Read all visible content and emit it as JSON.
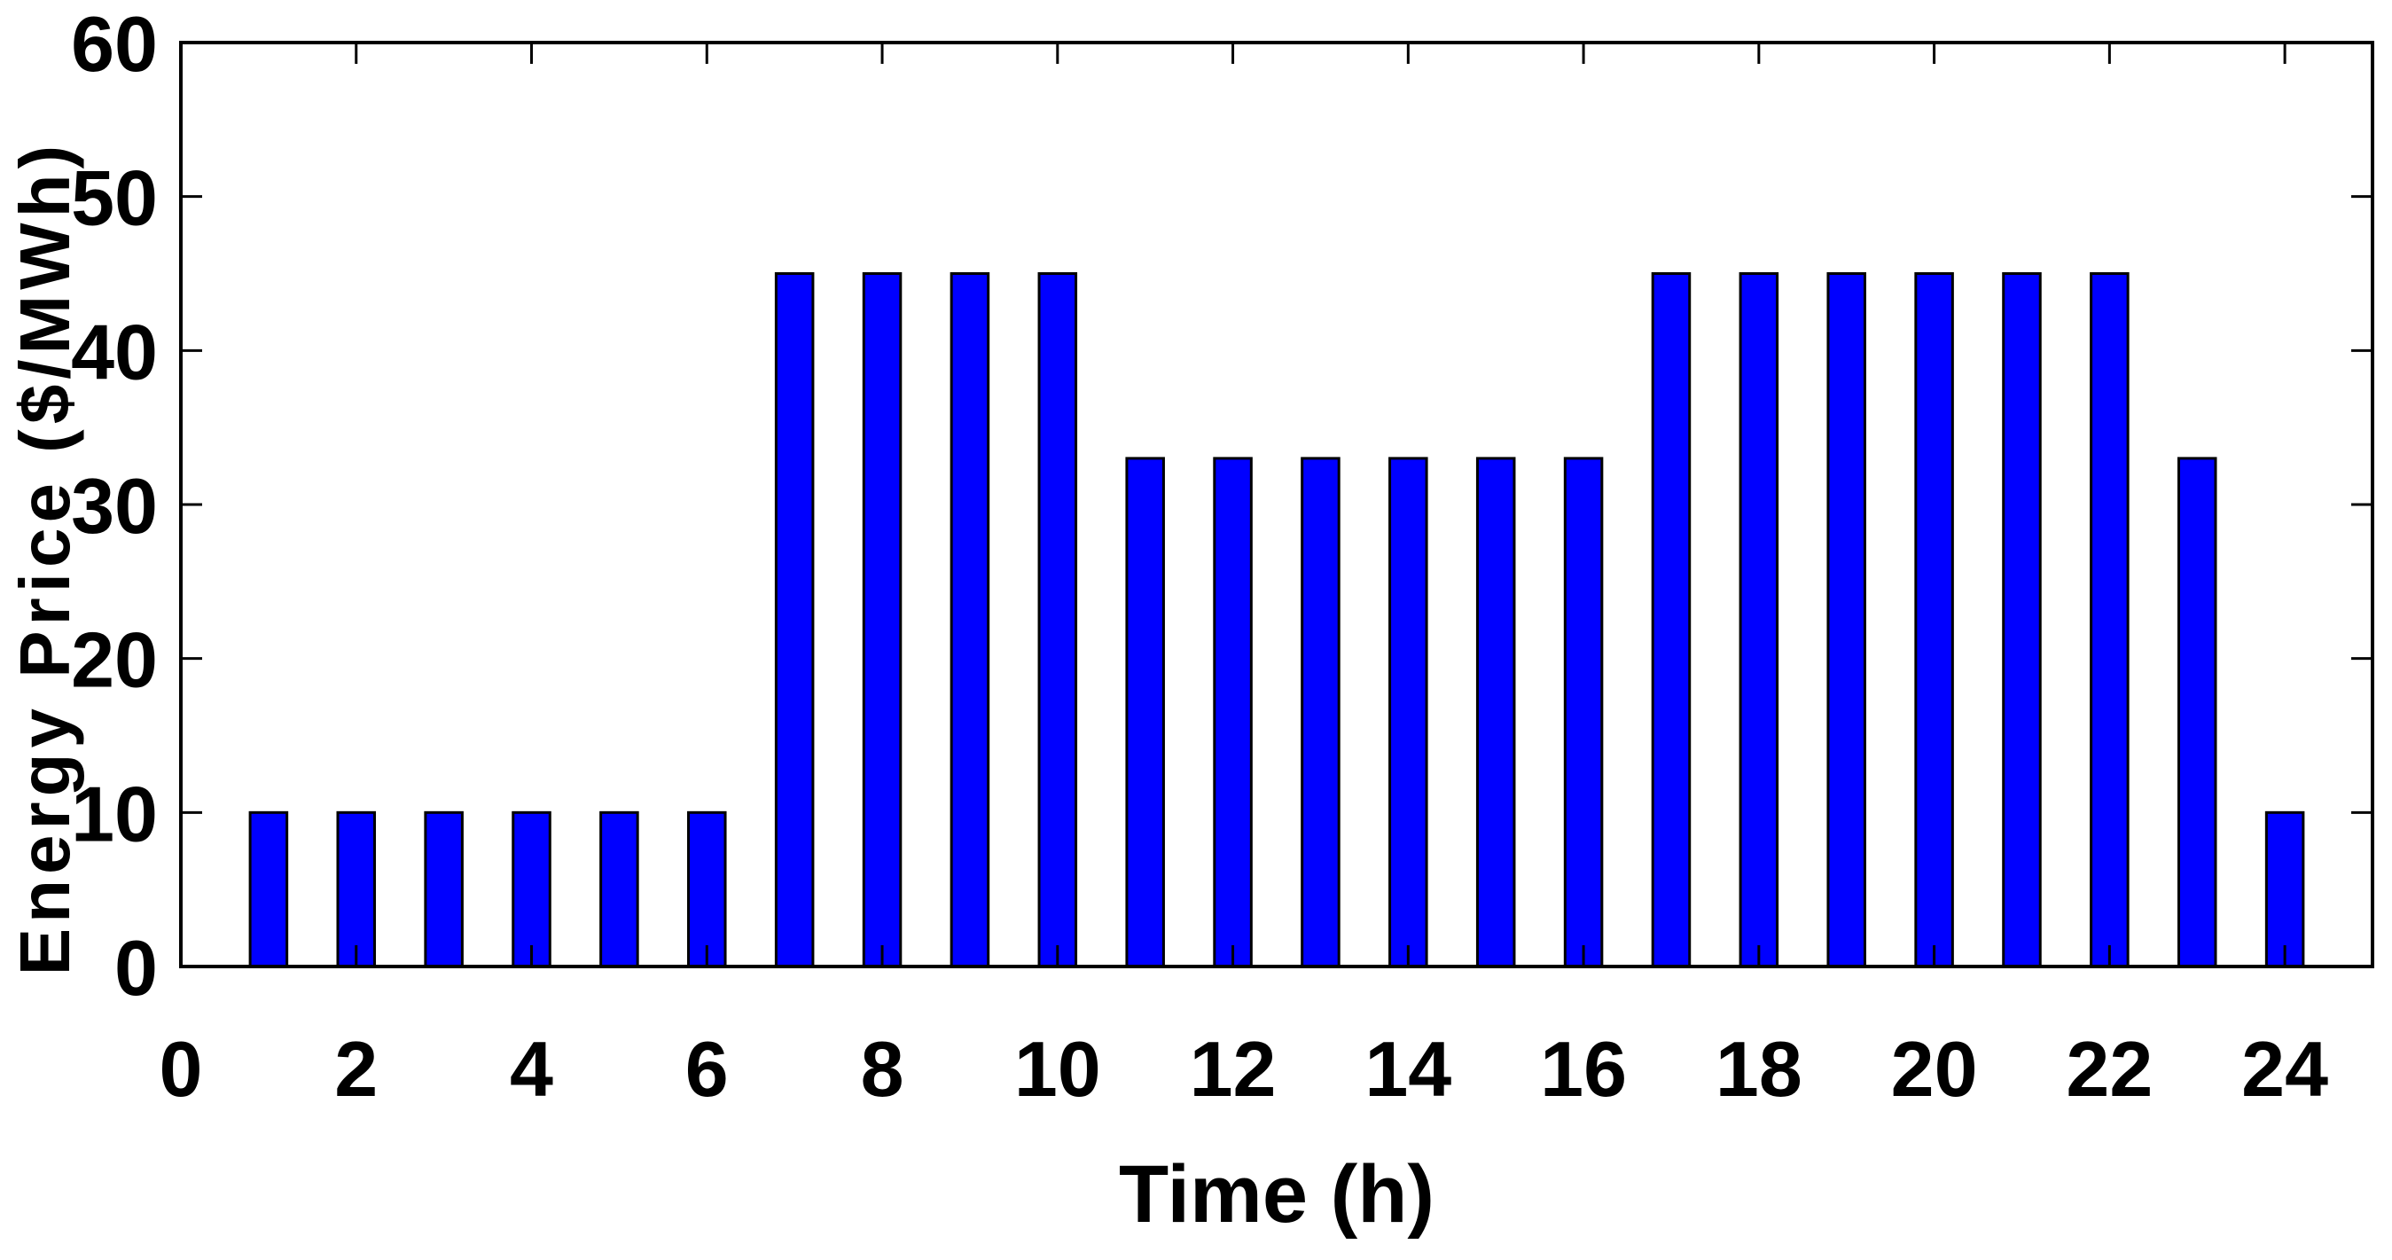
{
  "chart_data": {
    "type": "bar",
    "title": "",
    "xlabel": "Time (h)",
    "ylabel": "Energy Price ($/MWh)",
    "x": [
      1,
      2,
      3,
      4,
      5,
      6,
      7,
      8,
      9,
      10,
      11,
      12,
      13,
      14,
      15,
      16,
      17,
      18,
      19,
      20,
      21,
      22,
      23,
      24
    ],
    "values": [
      10,
      10,
      10,
      10,
      10,
      10,
      45,
      45,
      45,
      45,
      33,
      33,
      33,
      33,
      33,
      33,
      45,
      45,
      45,
      45,
      45,
      45,
      33,
      10
    ],
    "xlim": [
      0,
      25
    ],
    "ylim": [
      0,
      60
    ],
    "xticks": [
      "0",
      "2",
      "4",
      "6",
      "8",
      "10",
      "12",
      "14",
      "16",
      "18",
      "20",
      "22",
      "24"
    ],
    "yticks": [
      "0",
      "10",
      "20",
      "30",
      "40",
      "50",
      "60"
    ],
    "grid": false,
    "legend": "none",
    "bar_color": "#0000ff",
    "bar_edge_color": "#000000"
  }
}
